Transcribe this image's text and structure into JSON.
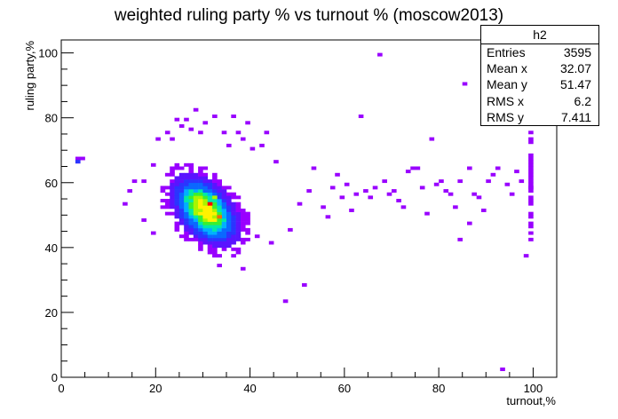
{
  "chart_data": {
    "type": "heatmap",
    "title": "weighted ruling party % vs turnout % (moscow2013)",
    "xlabel": "turnout,%",
    "ylabel": "ruling party,%",
    "xlim": [
      0,
      105
    ],
    "ylim": [
      0,
      104
    ],
    "xticks": [
      "0",
      "20",
      "40",
      "60",
      "80",
      "100"
    ],
    "yticks": [
      "0",
      "20",
      "40",
      "60",
      "80",
      "100"
    ],
    "bin_width_x": 1,
    "bin_width_y": 1,
    "color_scale": [
      "#9900ff",
      "#5a14ff",
      "#2a35ff",
      "#0a68ff",
      "#00b0ff",
      "#00e8a8",
      "#38f030",
      "#a8f500",
      "#fff200",
      "#ff6a00",
      "#ff0000"
    ],
    "core": {
      "x": 30.5,
      "y": 51.5,
      "sigma_x": 3.3,
      "sigma_y": 5.0,
      "correlation": -0.45
    },
    "hot_cells": [
      {
        "x": 31,
        "y": 53,
        "level": 10
      },
      {
        "x": 33,
        "y": 49,
        "level": 9
      },
      {
        "x": 30,
        "y": 51,
        "level": 8
      },
      {
        "x": 32,
        "y": 55,
        "level": 7
      }
    ],
    "outlier_cells": [
      [
        3,
        66
      ],
      [
        3,
        67
      ],
      [
        4,
        67
      ],
      [
        13,
        53
      ],
      [
        14,
        57
      ],
      [
        15,
        60
      ],
      [
        17,
        60
      ],
      [
        17,
        48
      ],
      [
        19,
        44
      ],
      [
        19,
        65
      ],
      [
        20,
        73
      ],
      [
        22,
        75
      ],
      [
        23,
        73
      ],
      [
        24,
        79
      ],
      [
        25,
        77
      ],
      [
        26,
        79
      ],
      [
        27,
        76
      ],
      [
        28,
        82
      ],
      [
        29,
        75
      ],
      [
        30,
        78
      ],
      [
        32,
        80
      ],
      [
        34,
        75
      ],
      [
        35,
        71
      ],
      [
        36,
        80
      ],
      [
        37,
        75
      ],
      [
        38,
        73
      ],
      [
        39,
        78
      ],
      [
        40,
        70
      ],
      [
        42,
        71
      ],
      [
        43,
        75
      ],
      [
        33,
        34
      ],
      [
        38,
        33
      ],
      [
        41,
        43
      ],
      [
        44,
        41
      ],
      [
        45,
        66
      ],
      [
        47,
        23
      ],
      [
        48,
        45
      ],
      [
        50,
        53
      ],
      [
        51,
        28
      ],
      [
        52,
        57
      ],
      [
        53,
        64
      ],
      [
        55,
        52
      ],
      [
        56,
        49
      ],
      [
        57,
        58
      ],
      [
        58,
        62
      ],
      [
        59,
        55
      ],
      [
        60,
        59
      ],
      [
        61,
        51
      ],
      [
        62,
        56
      ],
      [
        63,
        80
      ],
      [
        64,
        57
      ],
      [
        65,
        55
      ],
      [
        66,
        58
      ],
      [
        67,
        99
      ],
      [
        68,
        60
      ],
      [
        69,
        56
      ],
      [
        70,
        57
      ],
      [
        71,
        54
      ],
      [
        72,
        52
      ],
      [
        73,
        63
      ],
      [
        74,
        64
      ],
      [
        75,
        64
      ],
      [
        76,
        58
      ],
      [
        77,
        50
      ],
      [
        78,
        73
      ],
      [
        79,
        59
      ],
      [
        80,
        60
      ],
      [
        81,
        57
      ],
      [
        82,
        56
      ],
      [
        83,
        52
      ],
      [
        84,
        60
      ],
      [
        85,
        90
      ],
      [
        86,
        64
      ],
      [
        87,
        56
      ],
      [
        88,
        55
      ],
      [
        89,
        51
      ],
      [
        90,
        60
      ],
      [
        91,
        62
      ],
      [
        92,
        64
      ],
      [
        93,
        2
      ],
      [
        94,
        59
      ],
      [
        95,
        56
      ],
      [
        96,
        63
      ],
      [
        97,
        60
      ],
      [
        98,
        37
      ],
      [
        99,
        58
      ],
      [
        84,
        42
      ],
      [
        86,
        47
      ]
    ],
    "right_edge_column": {
      "x": 100,
      "y_from": 40,
      "y_to": 75
    }
  },
  "stats": {
    "name": "h2",
    "rows": [
      {
        "label": "Entries",
        "value": "3595"
      },
      {
        "label": "Mean x",
        "value": "32.07"
      },
      {
        "label": "Mean y",
        "value": "51.47"
      },
      {
        "label": "RMS x",
        "value": "6.2"
      },
      {
        "label": "RMS y",
        "value": "7.411"
      }
    ]
  }
}
